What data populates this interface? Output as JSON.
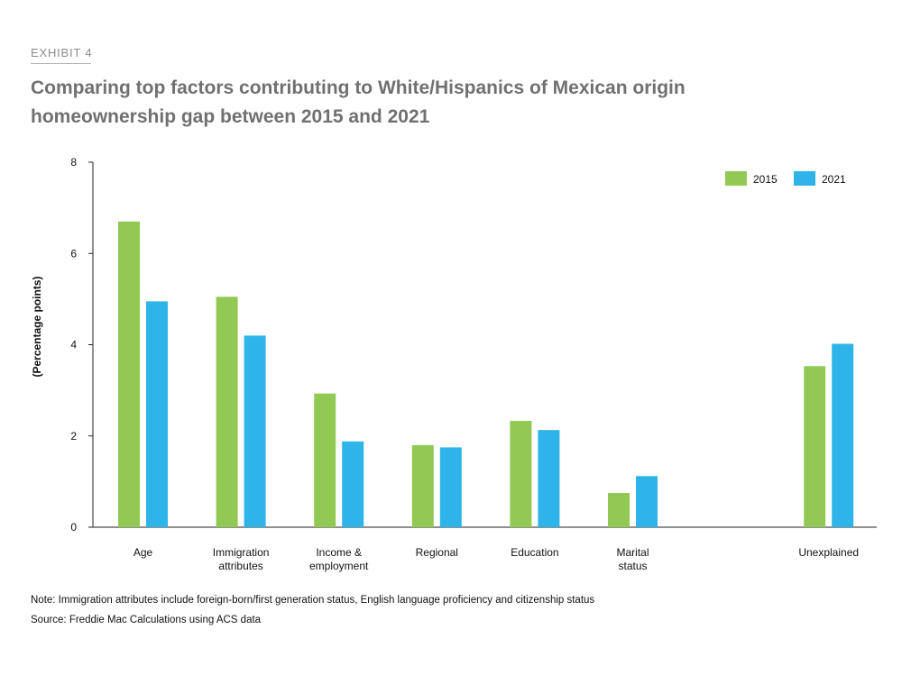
{
  "header": {
    "exhibit_label": "EXHIBIT 4",
    "title": "Comparing top factors contributing to White/Hispanics of Mexican origin homeownership gap between 2015 and 2021"
  },
  "footer": {
    "note": "Note: Immigration attributes include foreign-born/first generation status, English language proficiency and citizenship status",
    "source": "Source: Freddie Mac Calculations using ACS data"
  },
  "chart_data": {
    "type": "bar",
    "title": "",
    "xlabel": "",
    "ylabel": "(Percentage points)",
    "ylim": [
      0,
      8
    ],
    "yticks": [
      0,
      2,
      4,
      6,
      8
    ],
    "grid": false,
    "legend_position": "top-right",
    "categories": [
      [
        "Age"
      ],
      [
        "Immigration",
        "attributes"
      ],
      [
        "Income &",
        "employment"
      ],
      [
        "Regional"
      ],
      [
        "Education"
      ],
      [
        "Marital",
        "status"
      ],
      [],
      [
        "Unexplained"
      ]
    ],
    "series": [
      {
        "name": "2015",
        "color": "#92c955",
        "values": [
          6.7,
          5.05,
          2.93,
          1.8,
          2.33,
          0.75,
          null,
          3.53
        ]
      },
      {
        "name": "2021",
        "color": "#2eb4e8",
        "values": [
          4.95,
          4.2,
          1.88,
          1.75,
          2.13,
          1.12,
          null,
          4.02
        ]
      }
    ]
  }
}
